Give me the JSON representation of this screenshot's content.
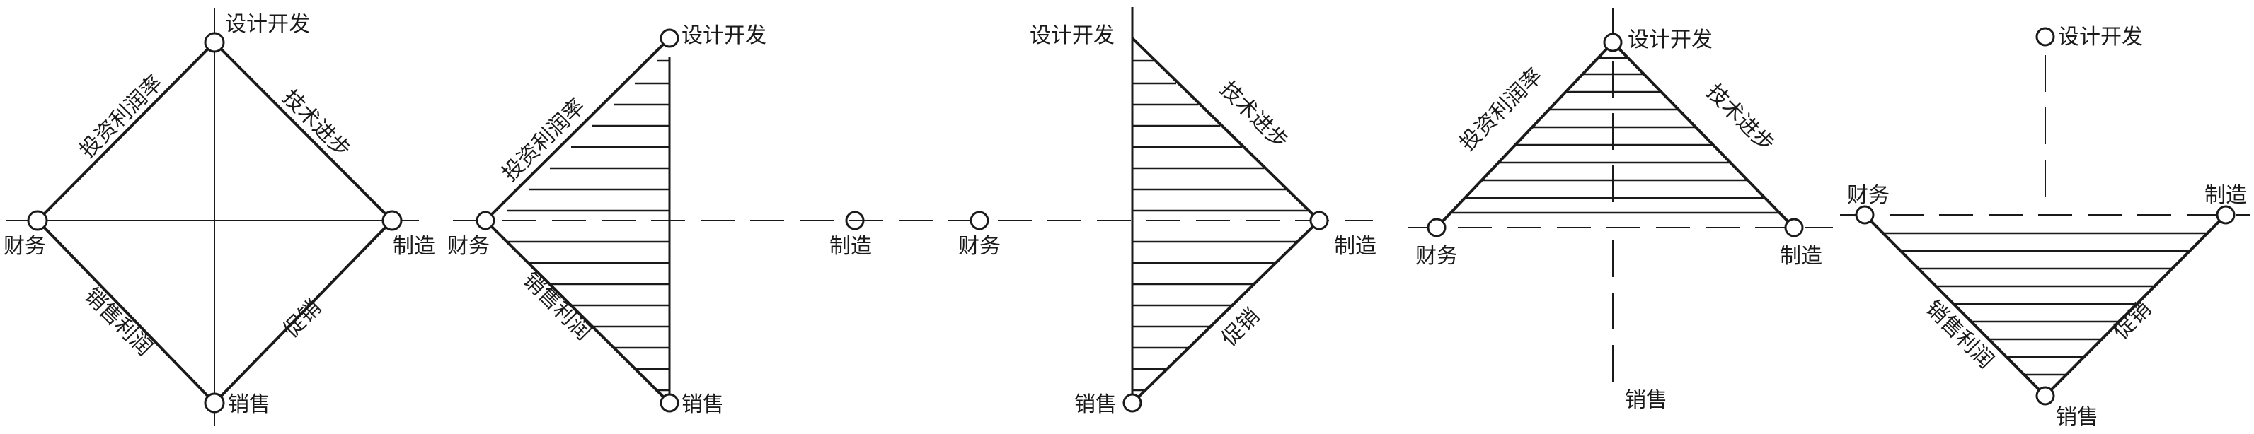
{
  "labels": {
    "design": "设计开发",
    "finance": "财务",
    "manufacturing": "制造",
    "sales": "销售",
    "investment_profit_rate": "投资利润率",
    "tech_progress": "技术进步",
    "sales_profit": "销售利润",
    "promotion": "促销"
  },
  "diagrams": [
    {
      "id": "diagram-1",
      "kind": "full-rhombus"
    },
    {
      "id": "diagram-2",
      "kind": "left-half-hatched"
    },
    {
      "id": "diagram-3",
      "kind": "right-half-hatched"
    },
    {
      "id": "diagram-4",
      "kind": "upper-triangle-hatched"
    },
    {
      "id": "diagram-5",
      "kind": "lower-triangle-hatched"
    }
  ],
  "colors": {
    "line": "#1a1a1a",
    "background": "#ffffff"
  }
}
